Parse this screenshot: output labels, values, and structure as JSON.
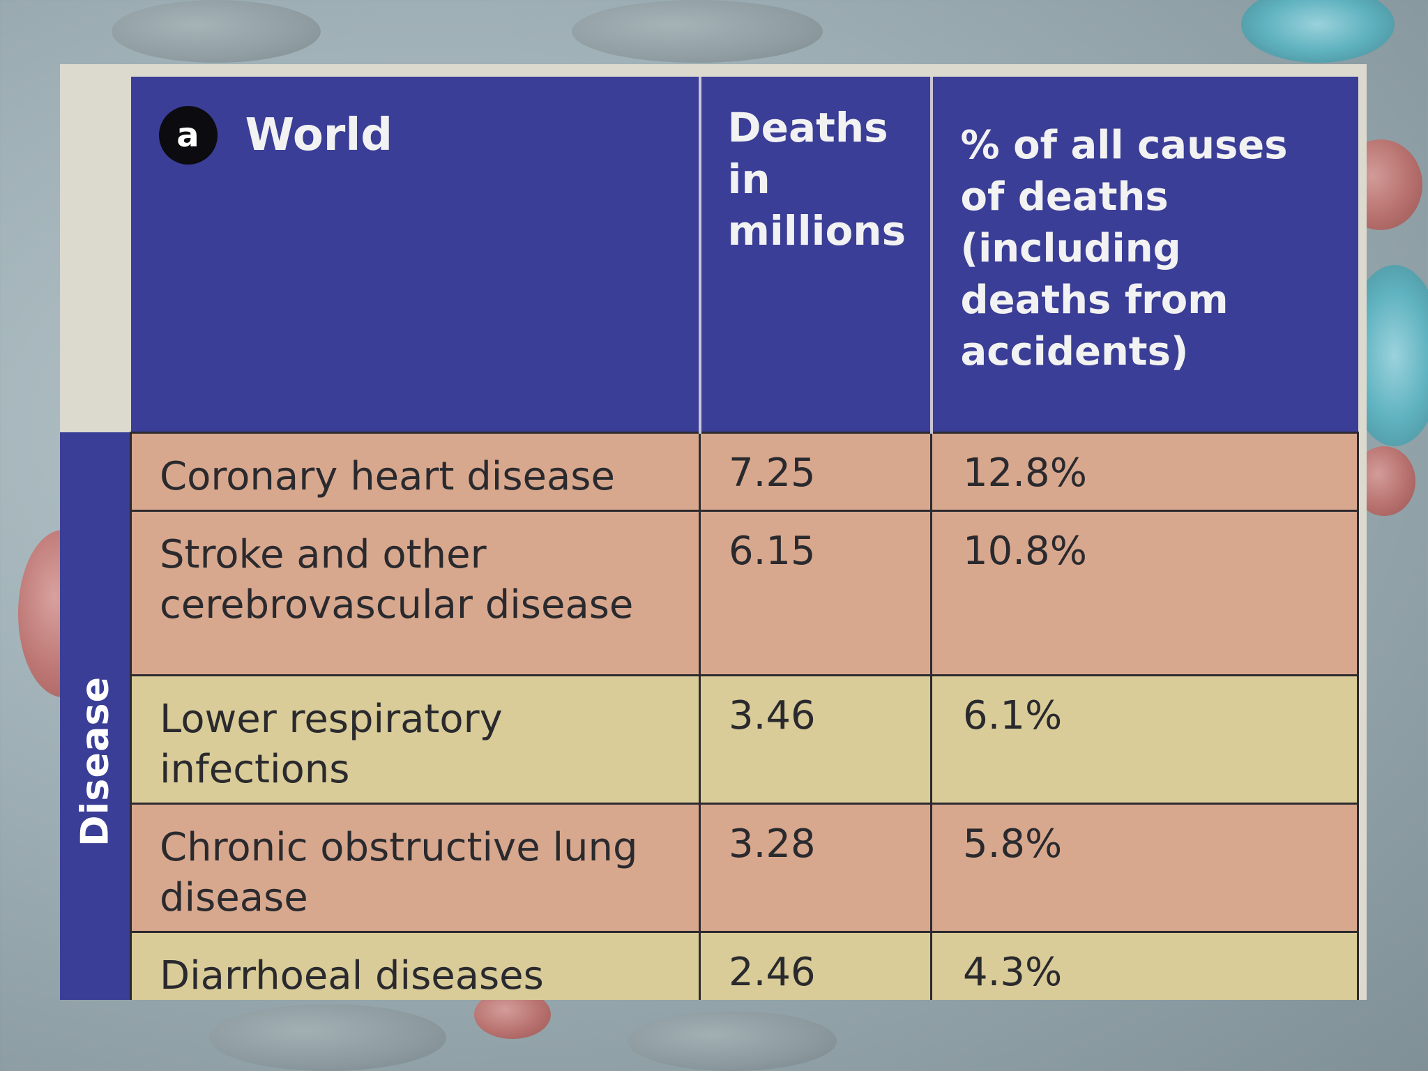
{
  "table": {
    "badge": "a",
    "region": "World",
    "col_deaths": "Deaths in millions",
    "col_percent": "% of all causes of deaths (including deaths from accidents)",
    "side_label": "Disease",
    "rows": [
      {
        "cause": "Coronary heart disease",
        "deaths": "7.25",
        "percent": "12.8%"
      },
      {
        "cause": "Stroke and other cerebrovascular disease",
        "deaths": "6.15",
        "percent": "10.8%"
      },
      {
        "cause": "Lower respiratory infections",
        "deaths": "3.46",
        "percent": "6.1%"
      },
      {
        "cause": "Chronic obstructive lung disease",
        "deaths": "3.28",
        "percent": "5.8%"
      },
      {
        "cause": "Diarrhoeal diseases",
        "deaths": "2.46",
        "percent": "4.3%"
      }
    ]
  },
  "colors": {
    "header_blue": "#3a3e96",
    "row_pink": "#d8a88e",
    "row_yellow": "#d9cc98"
  }
}
